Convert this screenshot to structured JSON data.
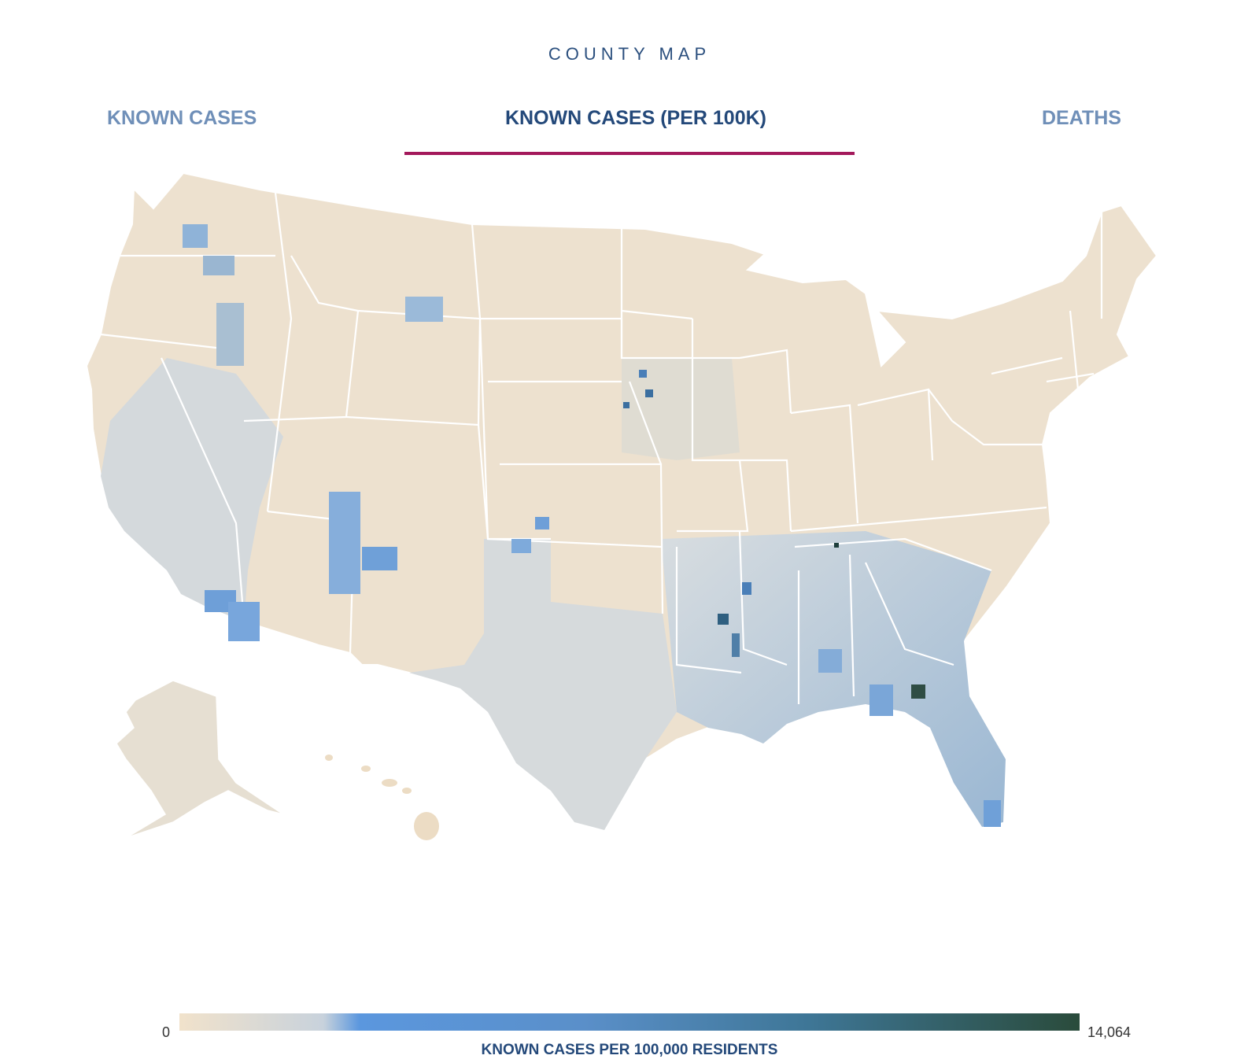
{
  "header": {
    "title": "COUNTY MAP"
  },
  "tabs": [
    {
      "label": "KNOWN CASES",
      "active": false
    },
    {
      "label": "KNOWN CASES (PER 100K)",
      "active": true
    },
    {
      "label": "DEATHS",
      "active": false
    }
  ],
  "legend": {
    "min_label": "0",
    "max_label": "14,064",
    "title": "KNOWN CASES PER 100,000 RESIDENTS",
    "colors": [
      "#f1e2cb",
      "#c8d2dc",
      "#5b97de",
      "#3e7696",
      "#2a4b3b"
    ]
  },
  "colors": {
    "accent_underline": "#a3195b",
    "tab_active": "#24497a",
    "tab_inactive": "#6f8fb8",
    "land_low": "#f1e2cb",
    "land_mid": "#cbd6de",
    "land_high": "#6fa0d8",
    "land_max": "#2f5a4d",
    "border": "#ffffff"
  }
}
